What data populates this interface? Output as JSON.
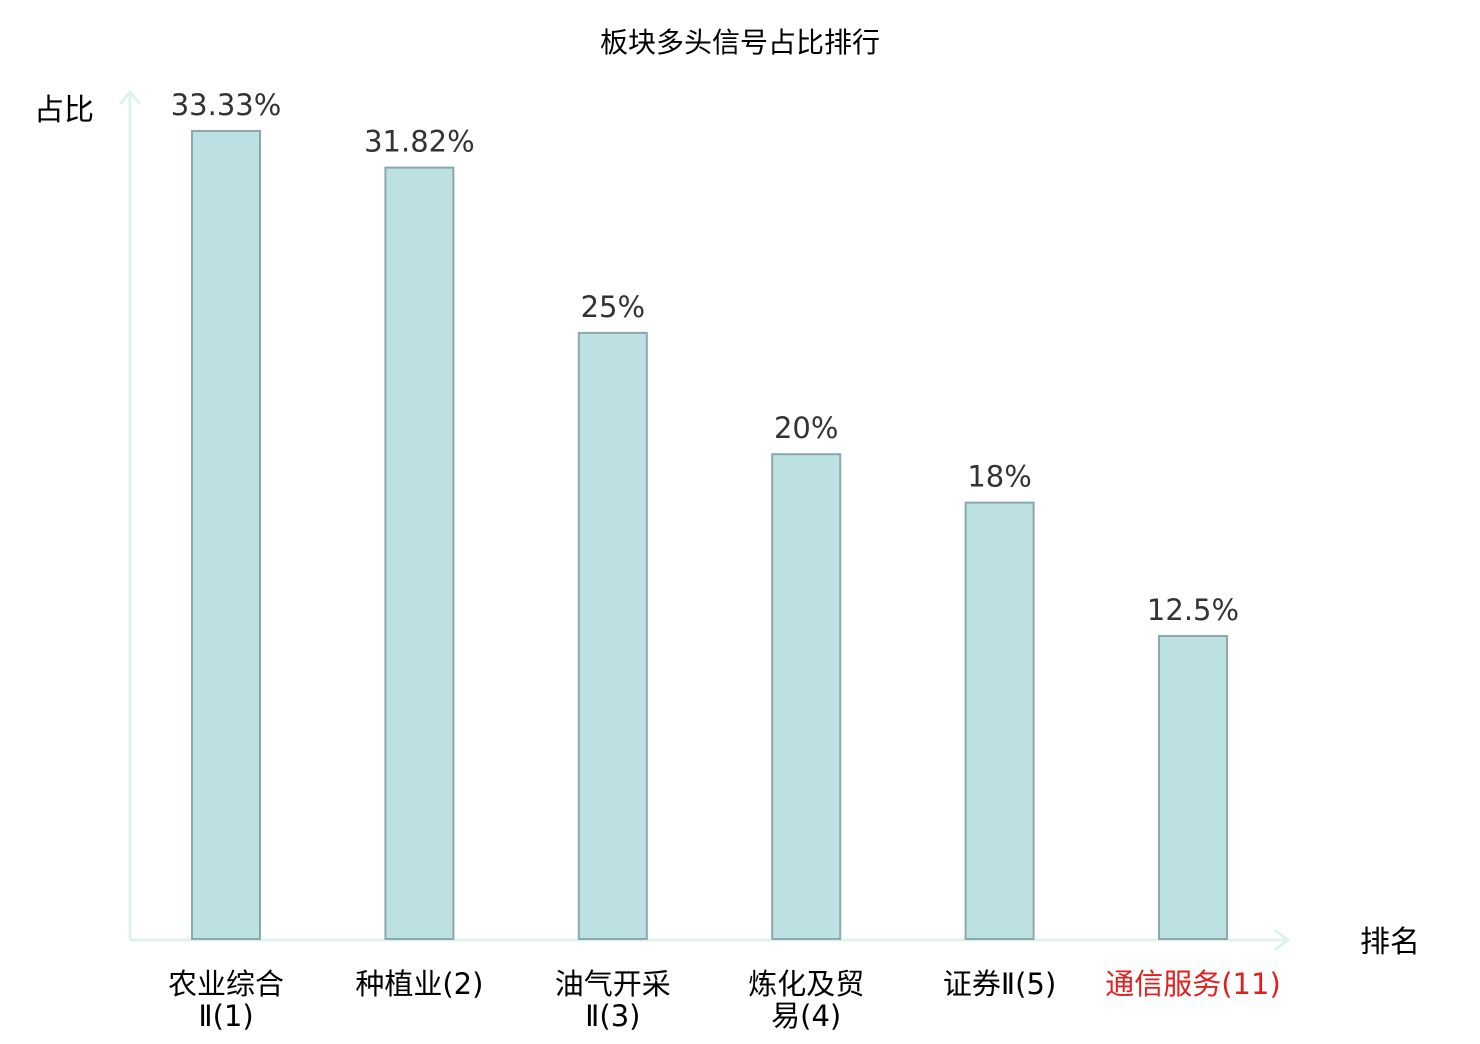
{
  "chart_data": {
    "type": "bar",
    "title": "板块多头信号占比排行",
    "xlabel": "排名",
    "ylabel": "占比",
    "categories": [
      [
        "农业综合",
        "Ⅱ(1)"
      ],
      [
        "种植业(2)"
      ],
      [
        "油气开采",
        "Ⅱ(3)"
      ],
      [
        "炼化及贸",
        "易(4)"
      ],
      [
        "证券Ⅱ(5)"
      ],
      [
        "通信服务(11)"
      ]
    ],
    "values": [
      33.33,
      31.82,
      25,
      20,
      18,
      12.5
    ],
    "value_labels": [
      "33.33%",
      "31.82%",
      "25%",
      "20%",
      "18%",
      "12.5%"
    ],
    "highlight_index": 5,
    "ylim": [
      0,
      35
    ],
    "grid": false,
    "legend": false,
    "colors": {
      "bar_fill": "#bde0e2",
      "bar_stroke": "#8aa9ab",
      "axis": "#e0f2ef",
      "text": "#333333",
      "highlight_text": "#e02020"
    }
  }
}
